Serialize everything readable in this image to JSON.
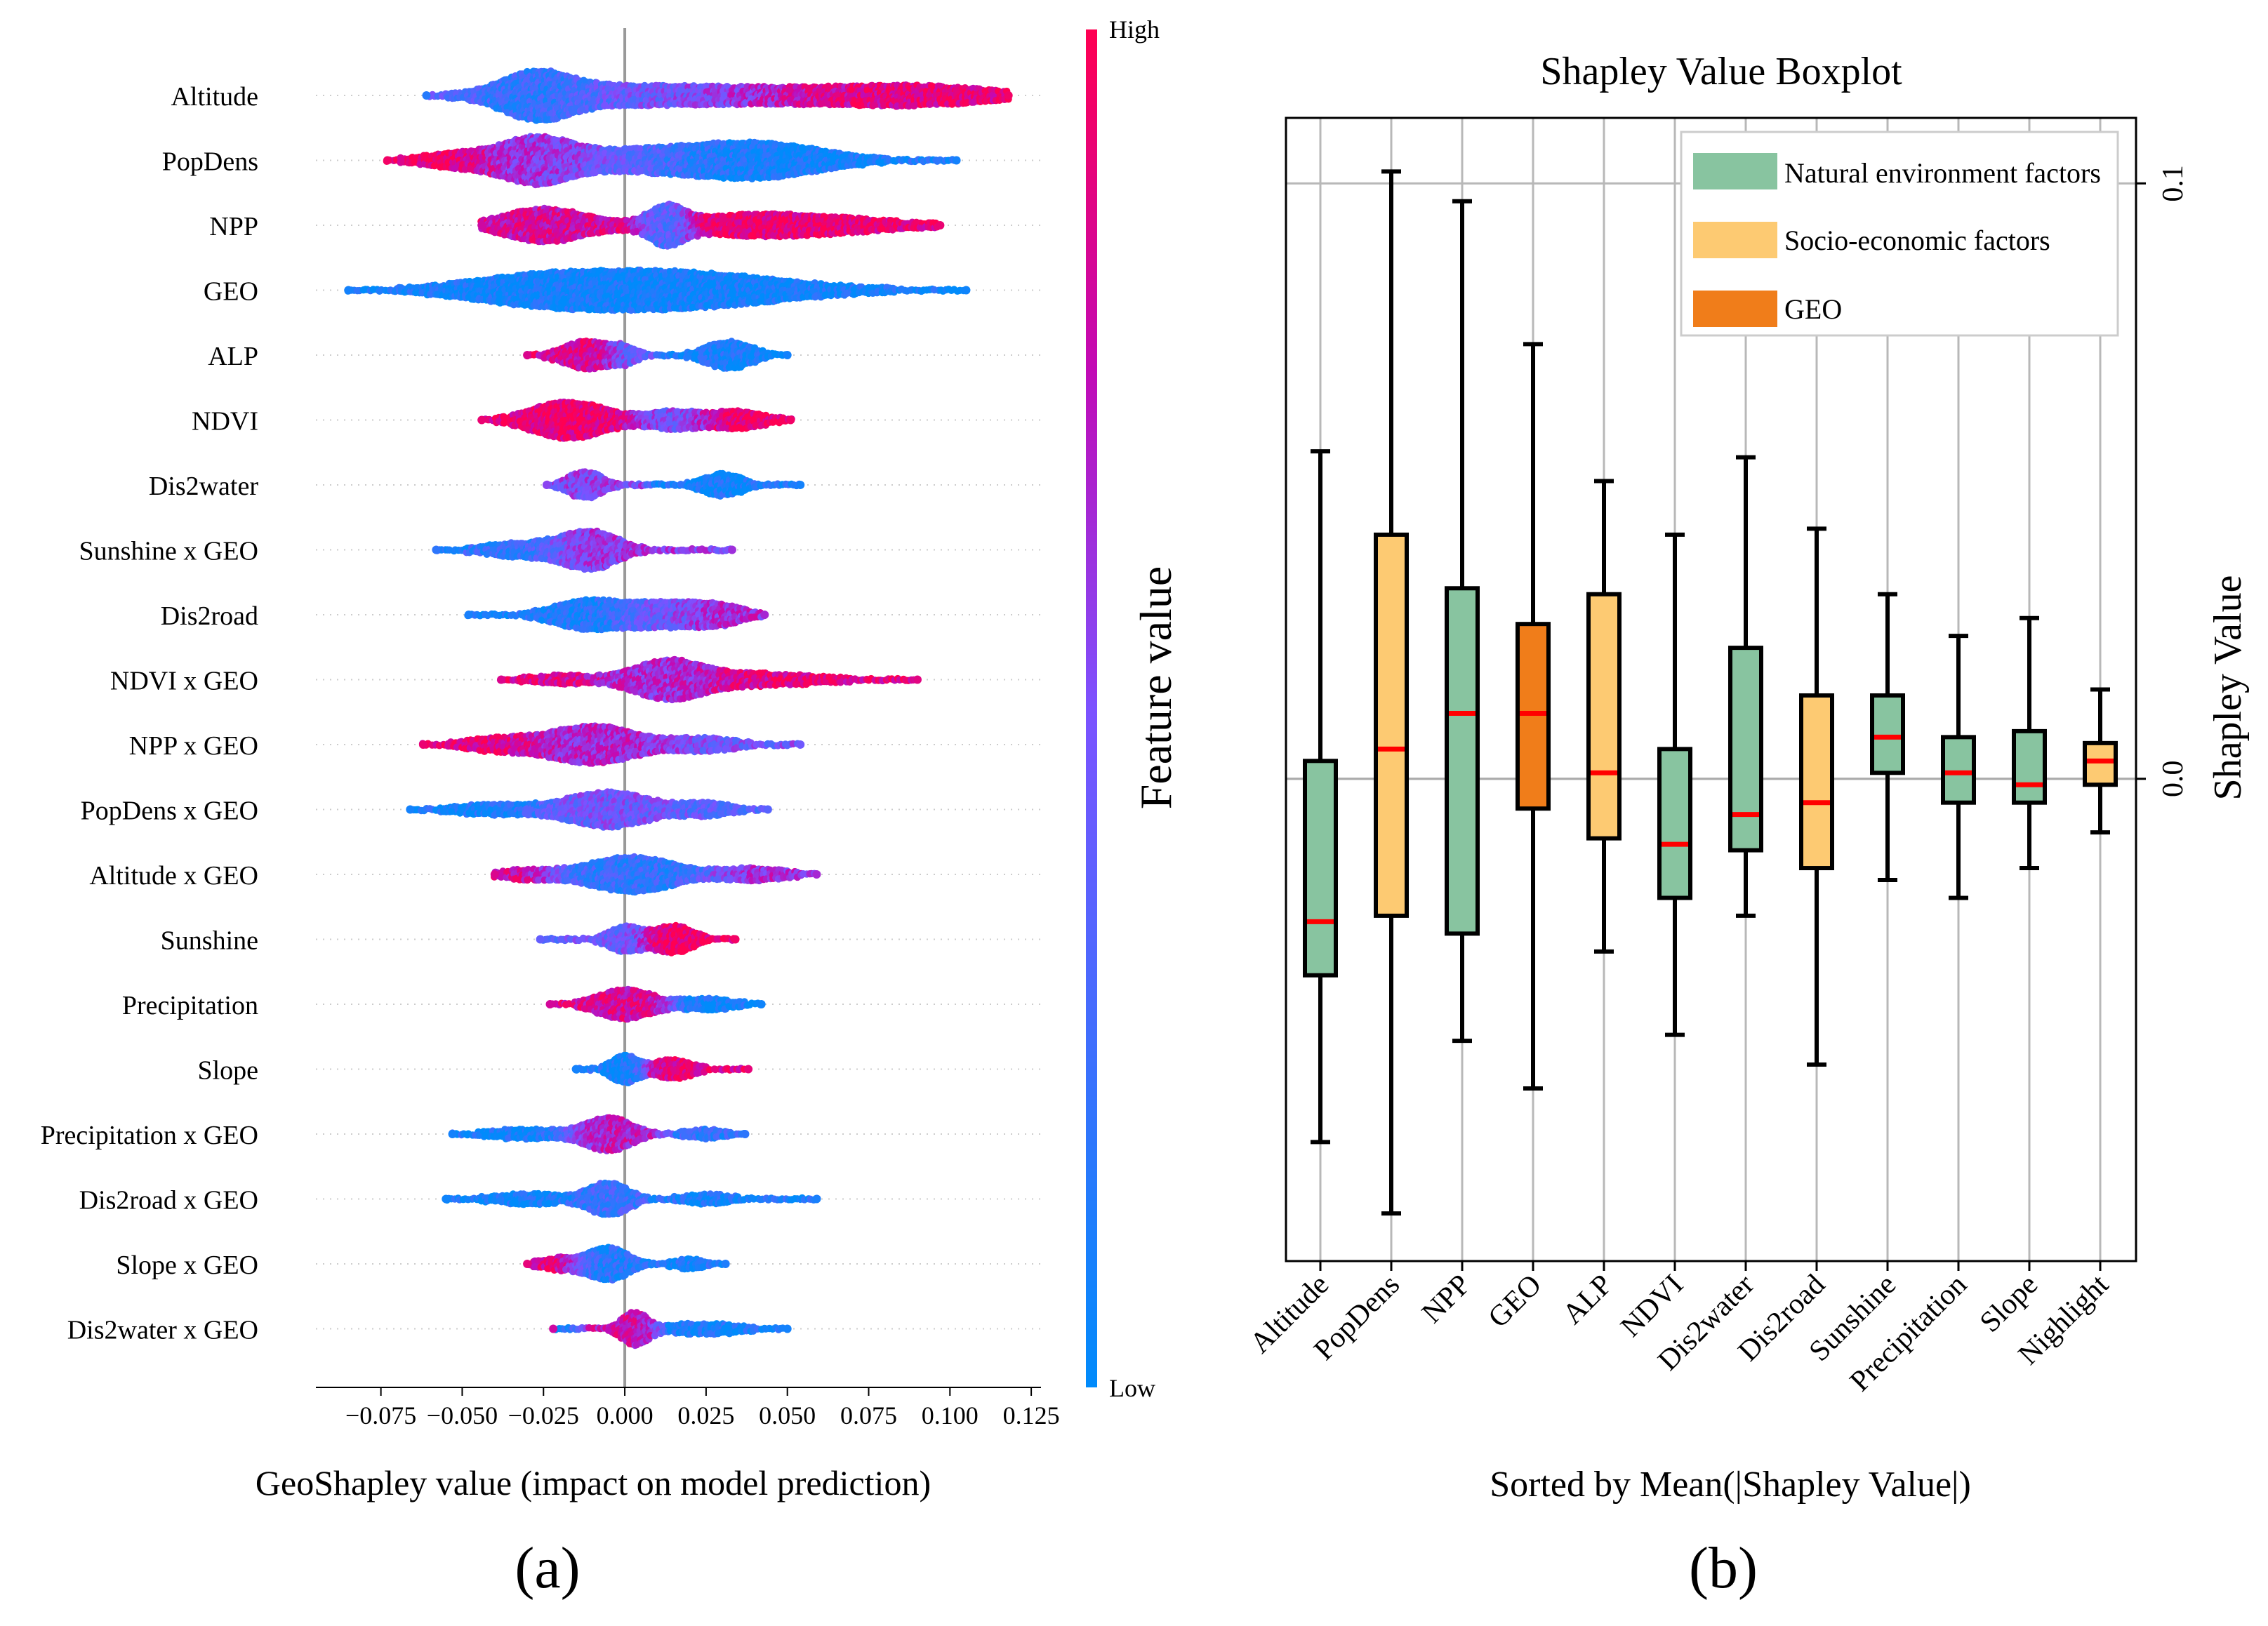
{
  "chart_data": [
    {
      "type": "beeswarm",
      "panel_label": "(a)",
      "xlabel": "GeoShapley value (impact on model prediction)",
      "xlim": [
        -0.095,
        0.128
      ],
      "xticks": [
        -0.075,
        -0.05,
        -0.025,
        0.0,
        0.025,
        0.05,
        0.075,
        0.1,
        0.125
      ],
      "xtick_labels": [
        "−0.075",
        "−0.050",
        "−0.025",
        "0.000",
        "0.025",
        "0.050",
        "0.075",
        "0.100",
        "0.125"
      ],
      "colorbar": {
        "label": "Feature value",
        "high_label": "High",
        "low_label": "Low",
        "high_color": "#ff0052",
        "low_color": "#008bfb"
      },
      "features": [
        {
          "name": "Altitude",
          "min": -0.061,
          "max": 0.118,
          "lobes": [
            [
              -0.027,
              3.0,
              0.01,
              0.15
            ],
            [
              0.0,
              1.5,
              0.03,
              0.4
            ],
            [
              0.065,
              1.1,
              0.03,
              0.85
            ],
            [
              0.095,
              0.9,
              0.02,
              0.95
            ]
          ]
        },
        {
          "name": "PopDens",
          "min": -0.073,
          "max": 0.102,
          "lobes": [
            [
              -0.027,
              3.2,
              0.01,
              0.6
            ],
            [
              -0.05,
              1.2,
              0.012,
              0.95
            ],
            [
              0.0,
              1.4,
              0.018,
              0.45
            ],
            [
              0.04,
              2.8,
              0.02,
              0.08
            ]
          ]
        },
        {
          "name": "NPP",
          "min": -0.044,
          "max": 0.097,
          "lobes": [
            [
              -0.025,
              2.6,
              0.012,
              0.8
            ],
            [
              0.013,
              2.4,
              0.005,
              0.12
            ],
            [
              0.045,
              1.8,
              0.028,
              0.92
            ]
          ]
        },
        {
          "name": "GEO",
          "min": -0.085,
          "max": 0.105,
          "lobes": [
            [
              0.01,
              3.0,
              0.035,
              0.06
            ],
            [
              -0.03,
              1.0,
              0.02,
              0.08
            ]
          ]
        },
        {
          "name": "ALP",
          "min": -0.03,
          "max": 0.05,
          "lobes": [
            [
              -0.012,
              2.2,
              0.007,
              0.85
            ],
            [
              0.0,
              1.2,
              0.004,
              0.3
            ],
            [
              0.032,
              2.2,
              0.007,
              0.08
            ]
          ]
        },
        {
          "name": "NDVI",
          "min": -0.044,
          "max": 0.051,
          "lobes": [
            [
              -0.017,
              3.0,
              0.011,
              0.92
            ],
            [
              0.015,
              1.4,
              0.008,
              0.45
            ],
            [
              0.035,
              1.4,
              0.008,
              0.95
            ]
          ]
        },
        {
          "name": "Dis2water",
          "min": -0.024,
          "max": 0.054,
          "lobes": [
            [
              -0.012,
              2.2,
              0.005,
              0.55
            ],
            [
              0.03,
              1.8,
              0.006,
              0.08
            ]
          ]
        },
        {
          "name": "Sunshine x GEO",
          "min": -0.058,
          "max": 0.033,
          "lobes": [
            [
              -0.01,
              2.8,
              0.008,
              0.62
            ],
            [
              -0.03,
              1.2,
              0.012,
              0.18
            ]
          ]
        },
        {
          "name": "Dis2road",
          "min": -0.048,
          "max": 0.043,
          "lobes": [
            [
              -0.012,
              2.2,
              0.01,
              0.1
            ],
            [
              0.01,
              1.8,
              0.01,
              0.45
            ],
            [
              0.028,
              1.6,
              0.008,
              0.65
            ]
          ]
        },
        {
          "name": "NDVI x GEO",
          "min": -0.038,
          "max": 0.09,
          "lobes": [
            [
              0.013,
              2.8,
              0.01,
              0.62
            ],
            [
              0.04,
              1.0,
              0.02,
              0.88
            ],
            [
              -0.02,
              0.7,
              0.01,
              0.85
            ]
          ]
        },
        {
          "name": "NPP x GEO",
          "min": -0.062,
          "max": 0.054,
          "lobes": [
            [
              -0.01,
              3.0,
              0.013,
              0.68
            ],
            [
              -0.04,
              1.0,
              0.01,
              0.92
            ],
            [
              0.025,
              1.0,
              0.01,
              0.45
            ]
          ]
        },
        {
          "name": "PopDens x GEO",
          "min": -0.066,
          "max": 0.044,
          "lobes": [
            [
              -0.005,
              2.8,
              0.012,
              0.45
            ],
            [
              -0.04,
              0.9,
              0.012,
              0.08
            ],
            [
              0.025,
              1.0,
              0.008,
              0.35
            ]
          ]
        },
        {
          "name": "Altitude x GEO",
          "min": -0.04,
          "max": 0.059,
          "lobes": [
            [
              0.002,
              2.8,
              0.013,
              0.2
            ],
            [
              0.04,
              1.0,
              0.01,
              0.65
            ],
            [
              -0.03,
              0.8,
              0.008,
              0.85
            ]
          ]
        },
        {
          "name": "Sunshine",
          "min": -0.026,
          "max": 0.034,
          "lobes": [
            [
              0.0,
              2.0,
              0.005,
              0.4
            ],
            [
              0.015,
              2.2,
              0.006,
              0.95
            ]
          ]
        },
        {
          "name": "Precipitation",
          "min": -0.023,
          "max": 0.042,
          "lobes": [
            [
              0.0,
              2.4,
              0.008,
              0.82
            ],
            [
              0.025,
              1.0,
              0.008,
              0.06
            ]
          ]
        },
        {
          "name": "Slope",
          "min": -0.015,
          "max": 0.038,
          "lobes": [
            [
              0.0,
              2.2,
              0.004,
              0.08
            ],
            [
              0.015,
              1.6,
              0.006,
              0.9
            ]
          ]
        },
        {
          "name": "Precipitation x GEO",
          "min": -0.053,
          "max": 0.037,
          "lobes": [
            [
              -0.005,
              2.6,
              0.007,
              0.72
            ],
            [
              -0.03,
              0.8,
              0.012,
              0.08
            ],
            [
              0.025,
              0.8,
              0.006,
              0.18
            ]
          ]
        },
        {
          "name": "Dis2road x GEO",
          "min": -0.055,
          "max": 0.059,
          "lobes": [
            [
              -0.005,
              2.6,
              0.006,
              0.25
            ],
            [
              -0.03,
              0.9,
              0.01,
              0.06
            ],
            [
              0.025,
              0.8,
              0.008,
              0.1
            ]
          ]
        },
        {
          "name": "Slope x GEO",
          "min": -0.03,
          "max": 0.031,
          "lobes": [
            [
              -0.005,
              2.6,
              0.006,
              0.15
            ],
            [
              -0.02,
              1.0,
              0.006,
              0.9
            ],
            [
              0.02,
              0.8,
              0.005,
              0.12
            ]
          ]
        },
        {
          "name": "Dis2water x GEO",
          "min": -0.022,
          "max": 0.05,
          "lobes": [
            [
              0.003,
              2.6,
              0.004,
              0.8
            ],
            [
              0.025,
              1.0,
              0.01,
              0.08
            ]
          ]
        }
      ]
    },
    {
      "type": "boxplot",
      "panel_label": "(b)",
      "title": "Shapley Value Boxplot",
      "xlabel": "Sorted by Mean(|Shapley Value|)",
      "ylabel": "Shapley Value",
      "ylim": [
        -0.081,
        0.111
      ],
      "yticks": [
        0.0,
        0.1
      ],
      "ytick_labels": [
        "0.0",
        "0.1"
      ],
      "grid": true,
      "legend": {
        "position": "top-right",
        "entries": [
          {
            "label": "Natural environment factors",
            "color": "#88c4a0"
          },
          {
            "label": "Socio-economic factors",
            "color": "#fdca72"
          },
          {
            "label": "GEO",
            "color": "#f07d1a"
          }
        ]
      },
      "median_color": "#ff0000",
      "boxes": [
        {
          "name": "Altitude",
          "group": 0,
          "whislo": -0.061,
          "q1": -0.033,
          "med": -0.024,
          "q3": 0.003,
          "whishi": 0.055
        },
        {
          "name": "PopDens",
          "group": 1,
          "whislo": -0.073,
          "q1": -0.023,
          "med": 0.005,
          "q3": 0.041,
          "whishi": 0.102
        },
        {
          "name": "NPP",
          "group": 0,
          "whislo": -0.044,
          "q1": -0.026,
          "med": 0.011,
          "q3": 0.032,
          "whishi": 0.097
        },
        {
          "name": "GEO",
          "group": 2,
          "whislo": -0.052,
          "q1": -0.005,
          "med": 0.011,
          "q3": 0.026,
          "whishi": 0.073
        },
        {
          "name": "ALP",
          "group": 1,
          "whislo": -0.029,
          "q1": -0.01,
          "med": 0.001,
          "q3": 0.031,
          "whishi": 0.05
        },
        {
          "name": "NDVI",
          "group": 0,
          "whislo": -0.043,
          "q1": -0.02,
          "med": -0.011,
          "q3": 0.005,
          "whishi": 0.041
        },
        {
          "name": "Dis2water",
          "group": 0,
          "whislo": -0.023,
          "q1": -0.012,
          "med": -0.006,
          "q3": 0.022,
          "whishi": 0.054
        },
        {
          "name": "Dis2road",
          "group": 1,
          "whislo": -0.048,
          "q1": -0.015,
          "med": -0.004,
          "q3": 0.014,
          "whishi": 0.042
        },
        {
          "name": "Sunshine",
          "group": 0,
          "whislo": -0.017,
          "q1": 0.001,
          "med": 0.007,
          "q3": 0.014,
          "whishi": 0.031
        },
        {
          "name": "Precipitation",
          "group": 0,
          "whislo": -0.02,
          "q1": -0.004,
          "med": 0.001,
          "q3": 0.007,
          "whishi": 0.024
        },
        {
          "name": "Slope",
          "group": 0,
          "whislo": -0.015,
          "q1": -0.004,
          "med": -0.001,
          "q3": 0.008,
          "whishi": 0.027
        },
        {
          "name": "Nighlight",
          "group": 1,
          "whislo": -0.009,
          "q1": -0.001,
          "med": 0.003,
          "q3": 0.006,
          "whishi": 0.015
        }
      ]
    }
  ]
}
